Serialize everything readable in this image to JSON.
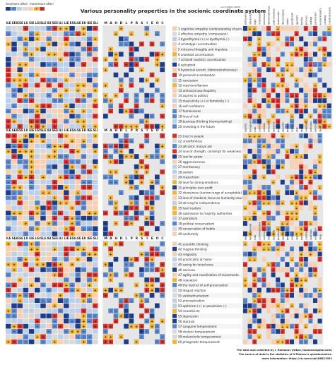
{
  "header": {
    "legend_left": "less/more often",
    "legend_right": "more/more often",
    "title": "Various personality properties in the socionic coordinate system",
    "version": "v.2.2 (05.07.2023)"
  },
  "footer": {
    "line1": "The data was collected by I. Romanov (https://socionavigator.com)",
    "line2": "The source of data is the statistics of V.Talanov's questionnaires.",
    "line3": "more information: https://vk.com/club188821951"
  },
  "colors": {
    "strong_neg": "#1f3f8c",
    "neg": "#5b86c9",
    "weak_neg": "#bcd0ea",
    "neutral": "#d9d9d9",
    "weak_pos": "#f8cfb2",
    "pos": "#f2b43a",
    "strong_pos": "#d8322b",
    "panel_bg": "#e6e6e6"
  },
  "chart_data": {
    "type": "heatmap",
    "types_header": [
      "ILE",
      "SEI",
      "ESE",
      "LII",
      "EIE",
      "LSI",
      "SLE",
      "IEI",
      "SEE",
      "ILI",
      "LIE",
      "ESI",
      "LSE",
      "EII",
      "IEE",
      "SLI"
    ],
    "scales_header": [
      "M",
      "A",
      "H",
      "D",
      "L",
      "P",
      "R",
      "S",
      "I",
      "E",
      "O",
      "C"
    ],
    "right_columns": [
      "extraversion",
      "intuitivity",
      "logic",
      "irrationality",
      "merriness",
      "democraticness",
      "judiciousness",
      "aristocratic",
      "decisiveness",
      "static",
      "positivism",
      "questim",
      "tactics",
      "process",
      "asking",
      "emotivism",
      "evolutionarity",
      "yielding",
      "constructivism"
    ],
    "right_columns_2": [
      "quadra",
      "temperament",
      "club",
      "communicative",
      "vertical",
      "rational",
      "dynamic",
      "positivist",
      "questim",
      "process",
      "asking",
      "stat",
      "tact",
      "carefree",
      "judicious",
      "emotivism",
      "ideal"
    ],
    "properties": [
      "1  cognitive empathy (understanding of pers.)",
      "2  affective empathy (compassion)",
      "3  hyperthymia (+) or dysthymia (–)",
      "4  schizotypic accentuation",
      "5  intrusive thoughts and impulses",
      "6  anankast accentuation",
      "7  schizoid (autistic) accentuation",
      "8  epileptoid",
      "9  hysterical accent. (demonstrativeness)",
      "10  paranoid accentuation",
      "11  narcissism",
      "12  machiavellianism",
      "13  antisocial psychopathy",
      "14  aspires to politics",
      "15  masculinity (+) or femininity (–)",
      "16  self-confidence",
      "17  fearlessness",
      "18  love of risk",
      "19  business thinking (moneymaking)",
      "20  investing in the future",
      "21  trust in people",
      "22  unselfishness",
      "23  altruistic mutual aid",
      "24  love of strength, contempt for weakness",
      "25  lust for power",
      "26  aggressiveness",
      "27  meritocracy",
      "28  sadism",
      "29  masochism",
      "30  love for strong emotions",
      "31  principles over profit",
      "32  choosiness (narrow range of acceptable)",
      "33  love of mankind, focus on humanity issues",
      "34  striving for independence",
      "35  hard realism",
      "36  submission to majority authorities",
      "37  patriotism",
      "38  political conservatism",
      "39  conservation of habits",
      "40  conformity",
      "41  scientific thinking",
      "42  magical thinking",
      "43  religiosity",
      "44  practicality at home",
      "45  caring for loved ones",
      "46  sexiness",
      "47  agility and coordination of movements",
      "48  relaxation",
      "49  the instinct of self-preservation",
      "50  disgust reaction",
      "51  valetudinarianism",
      "52  procrastination",
      "53  optimism (+) or pessimism (–)",
      "54  neuroticism",
      "55  depression",
      "56  ataraxia",
      "57  sanguine temperament",
      "58  choleric temperament",
      "59  melancholic temperament",
      "60  phlegmatic temperament"
    ]
  }
}
